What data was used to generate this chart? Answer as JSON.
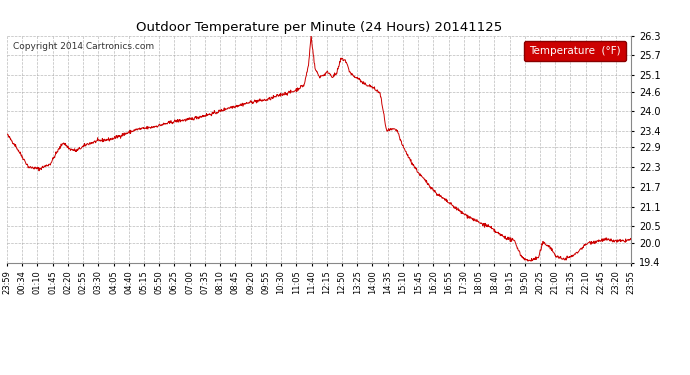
{
  "title": "Outdoor Temperature per Minute (24 Hours) 20141125",
  "copyright_text": "Copyright 2014 Cartronics.com",
  "legend_label": "Temperature  (°F)",
  "line_color": "#cc0000",
  "background_color": "#ffffff",
  "grid_color": "#aaaaaa",
  "ylim": [
    19.4,
    26.3
  ],
  "yticks": [
    19.4,
    20.0,
    20.5,
    21.1,
    21.7,
    22.3,
    22.9,
    23.4,
    24.0,
    24.6,
    25.1,
    25.7,
    26.3
  ],
  "xtick_labels": [
    "23:59",
    "00:34",
    "01:10",
    "01:45",
    "02:20",
    "02:55",
    "03:30",
    "04:05",
    "04:40",
    "05:15",
    "05:50",
    "06:25",
    "07:00",
    "07:35",
    "08:10",
    "08:45",
    "09:20",
    "09:55",
    "10:30",
    "11:05",
    "11:40",
    "12:15",
    "12:50",
    "13:25",
    "14:00",
    "14:35",
    "15:10",
    "15:45",
    "16:20",
    "16:55",
    "17:30",
    "18:05",
    "18:40",
    "19:15",
    "19:50",
    "20:25",
    "21:00",
    "21:35",
    "22:10",
    "22:45",
    "23:20",
    "23:55"
  ],
  "legend_bg": "#cc0000",
  "legend_text_color": "#ffffff",
  "keypoints": [
    [
      0,
      23.3
    ],
    [
      20,
      22.95
    ],
    [
      50,
      22.3
    ],
    [
      75,
      22.25
    ],
    [
      100,
      22.4
    ],
    [
      115,
      22.75
    ],
    [
      130,
      23.05
    ],
    [
      145,
      22.85
    ],
    [
      160,
      22.8
    ],
    [
      185,
      23.0
    ],
    [
      210,
      23.1
    ],
    [
      240,
      23.15
    ],
    [
      270,
      23.3
    ],
    [
      300,
      23.45
    ],
    [
      330,
      23.5
    ],
    [
      360,
      23.6
    ],
    [
      390,
      23.7
    ],
    [
      420,
      23.75
    ],
    [
      450,
      23.85
    ],
    [
      480,
      23.95
    ],
    [
      510,
      24.1
    ],
    [
      540,
      24.2
    ],
    [
      570,
      24.3
    ],
    [
      600,
      24.35
    ],
    [
      630,
      24.5
    ],
    [
      660,
      24.6
    ],
    [
      685,
      24.8
    ],
    [
      695,
      25.4
    ],
    [
      701,
      26.3
    ],
    [
      710,
      25.3
    ],
    [
      720,
      25.05
    ],
    [
      730,
      25.1
    ],
    [
      740,
      25.2
    ],
    [
      750,
      25.05
    ],
    [
      760,
      25.15
    ],
    [
      770,
      25.6
    ],
    [
      780,
      25.55
    ],
    [
      790,
      25.2
    ],
    [
      800,
      25.05
    ],
    [
      810,
      25.0
    ],
    [
      820,
      24.85
    ],
    [
      840,
      24.75
    ],
    [
      860,
      24.55
    ],
    [
      875,
      23.4
    ],
    [
      890,
      23.45
    ],
    [
      900,
      23.4
    ],
    [
      910,
      23.0
    ],
    [
      930,
      22.5
    ],
    [
      950,
      22.1
    ],
    [
      970,
      21.8
    ],
    [
      990,
      21.5
    ],
    [
      1010,
      21.3
    ],
    [
      1030,
      21.1
    ],
    [
      1050,
      20.9
    ],
    [
      1070,
      20.75
    ],
    [
      1090,
      20.6
    ],
    [
      1110,
      20.5
    ],
    [
      1130,
      20.3
    ],
    [
      1150,
      20.15
    ],
    [
      1170,
      20.05
    ],
    [
      1185,
      19.6
    ],
    [
      1200,
      19.45
    ],
    [
      1215,
      19.5
    ],
    [
      1225,
      19.55
    ],
    [
      1235,
      20.0
    ],
    [
      1250,
      19.9
    ],
    [
      1265,
      19.6
    ],
    [
      1280,
      19.5
    ],
    [
      1295,
      19.55
    ],
    [
      1310,
      19.65
    ],
    [
      1325,
      19.85
    ],
    [
      1340,
      20.0
    ],
    [
      1360,
      20.05
    ],
    [
      1380,
      20.1
    ],
    [
      1400,
      20.05
    ],
    [
      1420,
      20.05
    ],
    [
      1439,
      20.1
    ]
  ]
}
